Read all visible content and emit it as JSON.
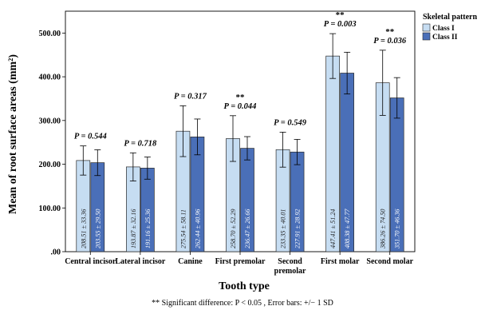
{
  "chart_data": {
    "type": "bar",
    "ylabel": "Mean of root surface areas (mm²)",
    "xlabel": "Tooth type",
    "ylim": [
      0,
      550
    ],
    "yticks": [
      ".00",
      "100.00",
      "200.00",
      "300.00",
      "400.00",
      "500.00"
    ],
    "ytick_values": [
      0,
      100,
      200,
      300,
      400,
      500
    ],
    "categories": [
      [
        "Central incisor"
      ],
      [
        "Lateral incisor"
      ],
      [
        "Canine"
      ],
      [
        "First premolar"
      ],
      [
        "Second",
        "premolar"
      ],
      [
        "First molar"
      ],
      [
        "Second molar"
      ]
    ],
    "legend": {
      "title": "Skeletal pattern",
      "position": "top-right"
    },
    "series": [
      {
        "name": "Class I",
        "color": "#c6ddf2",
        "values": [
          208.51,
          193.87,
          275.54,
          258.7,
          233.35,
          447.41,
          386.26
        ],
        "sd": [
          33.36,
          32.16,
          58.11,
          52.29,
          40.01,
          51.24,
          74.5
        ],
        "labels": [
          "208.51 ± 33.36",
          "193.87 ± 32.16",
          "275.54 ± 58.11",
          "258.70 ± 52.29",
          "233.35 ± 40.01",
          "447.41 ± 51.24",
          "386.26 ± 74.50"
        ]
      },
      {
        "name": "Class II",
        "color": "#4a6fb8",
        "values": [
          203.55,
          191.16,
          262.44,
          236.47,
          227.91,
          408.38,
          351.7
        ],
        "sd": [
          29.5,
          25.36,
          40.96,
          26.66,
          28.92,
          47.77,
          46.36
        ],
        "labels": [
          "203.55 ± 29.50",
          "191.16 ± 25.36",
          "262.44 ± 40.96",
          "236.47 ± 26.66",
          "227.91 ± 28.92",
          "408.38 ± 47.77",
          "351.70 ± 46.36"
        ]
      }
    ],
    "p_values": [
      "P = 0.544",
      "P = 0.718",
      "P = 0.317",
      "P = 0.044",
      "P = 0.549",
      "P = 0.003",
      "P = 0.036"
    ],
    "significant": [
      false,
      false,
      false,
      true,
      false,
      true,
      true
    ],
    "significance_marker": "**",
    "grid": false
  },
  "footnote": "** Significant difference: P < 0.05 ,  Error bars: +/− 1 SD"
}
